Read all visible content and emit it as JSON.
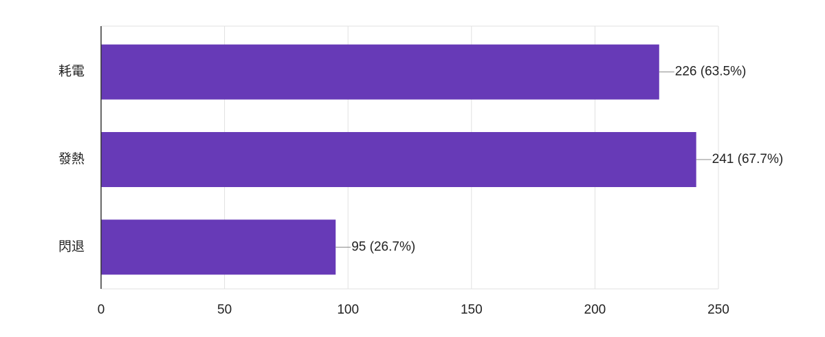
{
  "chart_data": {
    "type": "bar",
    "orientation": "horizontal",
    "categories": [
      "耗電",
      "發熱",
      "閃退"
    ],
    "values": [
      226,
      241,
      95
    ],
    "value_labels": [
      "226 (63.5%)",
      "241 (67.7%)",
      "95 (26.7%)"
    ],
    "color": "#673ab7",
    "xlim": [
      0,
      250
    ],
    "xticks": [
      0,
      50,
      100,
      150,
      200,
      250
    ],
    "grid": true
  }
}
